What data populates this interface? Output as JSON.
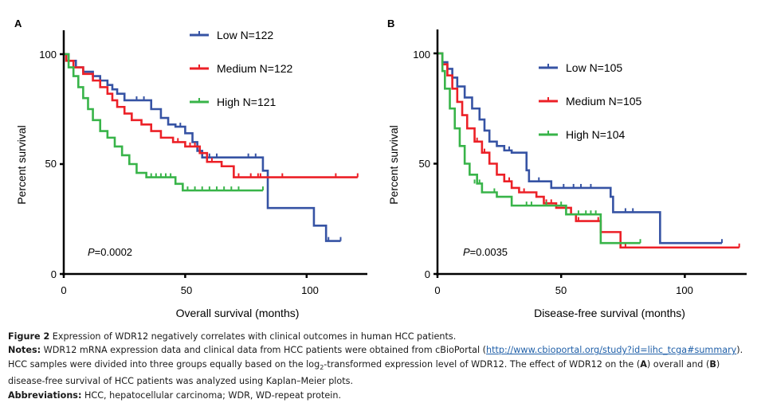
{
  "chart_data": [
    {
      "type": "line",
      "subtype": "kaplan-meier",
      "panel": "A",
      "title": "",
      "xlabel": "Overall survival (months)",
      "ylabel": "Percent survival",
      "xlim": [
        0,
        125
      ],
      "ylim": [
        0,
        100
      ],
      "xticks": [
        0,
        50,
        100
      ],
      "yticks": [
        0,
        50,
        100
      ],
      "grid": false,
      "legend_position": "top-right",
      "annotation": {
        "italic": "P",
        "text": "=0.0002"
      },
      "series": [
        {
          "name": "Low N=122",
          "color": "#3653a4",
          "steps": [
            [
              0,
              100
            ],
            [
              2,
              97
            ],
            [
              5,
              94
            ],
            [
              8,
              92
            ],
            [
              12,
              90
            ],
            [
              15,
              88
            ],
            [
              18,
              86
            ],
            [
              20,
              84
            ],
            [
              22,
              82
            ],
            [
              25,
              79
            ],
            [
              36,
              75
            ],
            [
              40,
              71
            ],
            [
              43,
              68
            ],
            [
              46,
              67
            ],
            [
              50,
              64
            ],
            [
              53,
              60
            ],
            [
              55,
              56
            ],
            [
              57,
              53
            ],
            [
              82,
              47
            ],
            [
              84,
              30
            ],
            [
              103,
              22
            ],
            [
              108,
              15
            ],
            [
              114,
              15
            ]
          ],
          "censored": [
            [
              30,
              79
            ],
            [
              33,
              79
            ],
            [
              48,
              67
            ],
            [
              60,
              53
            ],
            [
              63,
              53
            ],
            [
              76,
              53
            ],
            [
              79,
              53
            ],
            [
              109,
              15
            ],
            [
              114,
              15
            ]
          ]
        },
        {
          "name": "Medium N=122",
          "color": "#ec2027",
          "steps": [
            [
              0,
              100
            ],
            [
              1,
              97
            ],
            [
              4,
              94
            ],
            [
              8,
              91
            ],
            [
              12,
              88
            ],
            [
              15,
              85
            ],
            [
              18,
              82
            ],
            [
              20,
              79
            ],
            [
              22,
              76
            ],
            [
              25,
              73
            ],
            [
              28,
              70
            ],
            [
              32,
              68
            ],
            [
              36,
              65
            ],
            [
              40,
              62
            ],
            [
              45,
              60
            ],
            [
              50,
              58
            ],
            [
              56,
              55
            ],
            [
              59,
              51
            ],
            [
              65,
              49
            ],
            [
              70,
              44
            ],
            [
              121,
              44
            ]
          ],
          "censored": [
            [
              47,
              60
            ],
            [
              52,
              58
            ],
            [
              54,
              58
            ],
            [
              61,
              51
            ],
            [
              72,
              44
            ],
            [
              77,
              44
            ],
            [
              80,
              44
            ],
            [
              81,
              44
            ],
            [
              90,
              44
            ],
            [
              112,
              44
            ],
            [
              121,
              44
            ]
          ]
        },
        {
          "name": "High N=121",
          "color": "#38b449",
          "steps": [
            [
              0,
              100
            ],
            [
              2,
              94
            ],
            [
              4,
              90
            ],
            [
              6,
              85
            ],
            [
              8,
              80
            ],
            [
              10,
              75
            ],
            [
              12,
              70
            ],
            [
              15,
              65
            ],
            [
              18,
              62
            ],
            [
              21,
              58
            ],
            [
              24,
              54
            ],
            [
              27,
              50
            ],
            [
              30,
              46
            ],
            [
              34,
              44
            ],
            [
              46,
              41
            ],
            [
              49,
              38
            ],
            [
              82,
              38
            ]
          ],
          "censored": [
            [
              36,
              44
            ],
            [
              38,
              44
            ],
            [
              40,
              44
            ],
            [
              42,
              44
            ],
            [
              44,
              44
            ],
            [
              51,
              38
            ],
            [
              54,
              38
            ],
            [
              57,
              38
            ],
            [
              60,
              38
            ],
            [
              63,
              38
            ],
            [
              66,
              38
            ],
            [
              69,
              38
            ],
            [
              72,
              38
            ],
            [
              82,
              38
            ]
          ]
        }
      ]
    },
    {
      "type": "line",
      "subtype": "kaplan-meier",
      "panel": "B",
      "title": "",
      "xlabel": "Disease-free survival (months)",
      "ylabel": "Percent survival",
      "xlim": [
        0,
        125
      ],
      "ylim": [
        0,
        100
      ],
      "xticks": [
        0,
        50,
        100
      ],
      "yticks": [
        0,
        50,
        100
      ],
      "grid": false,
      "legend_position": "top-right",
      "annotation": {
        "italic": "P",
        "text": "=0.0035"
      },
      "series": [
        {
          "name": "Low N=105",
          "color": "#3653a4",
          "steps": [
            [
              0,
              100
            ],
            [
              2,
              96
            ],
            [
              4,
              93
            ],
            [
              6,
              89
            ],
            [
              8,
              85
            ],
            [
              11,
              80
            ],
            [
              14,
              75
            ],
            [
              17,
              70
            ],
            [
              19,
              65
            ],
            [
              21,
              60
            ],
            [
              24,
              58
            ],
            [
              27,
              56
            ],
            [
              30,
              55
            ],
            [
              36,
              47
            ],
            [
              37,
              42
            ],
            [
              46,
              39
            ],
            [
              70,
              35
            ],
            [
              71,
              28
            ],
            [
              90,
              14
            ],
            [
              115,
              14
            ]
          ],
          "censored": [
            [
              29,
              56
            ],
            [
              41,
              42
            ],
            [
              51,
              39
            ],
            [
              55,
              39
            ],
            [
              58,
              39
            ],
            [
              62,
              39
            ],
            [
              76,
              28
            ],
            [
              79,
              28
            ],
            [
              115,
              14
            ]
          ]
        },
        {
          "name": "Medium N=105",
          "color": "#ec2027",
          "steps": [
            [
              0,
              100
            ],
            [
              2,
              95
            ],
            [
              4,
              90
            ],
            [
              6,
              84
            ],
            [
              8,
              78
            ],
            [
              10,
              72
            ],
            [
              12,
              66
            ],
            [
              15,
              60
            ],
            [
              18,
              55
            ],
            [
              21,
              50
            ],
            [
              24,
              45
            ],
            [
              27,
              42
            ],
            [
              30,
              39
            ],
            [
              33,
              37
            ],
            [
              40,
              35
            ],
            [
              43,
              32
            ],
            [
              48,
              30
            ],
            [
              54,
              27
            ],
            [
              56,
              24
            ],
            [
              66,
              19
            ],
            [
              74,
              12
            ],
            [
              122,
              12
            ]
          ],
          "censored": [
            [
              16,
              60
            ],
            [
              19,
              55
            ],
            [
              29,
              42
            ],
            [
              35,
              37
            ],
            [
              44,
              32
            ],
            [
              46,
              32
            ],
            [
              57,
              24
            ],
            [
              65,
              24
            ],
            [
              76,
              12
            ],
            [
              122,
              12
            ]
          ]
        },
        {
          "name": "High N=104",
          "color": "#38b449",
          "steps": [
            [
              0,
              100
            ],
            [
              2,
              92
            ],
            [
              3,
              84
            ],
            [
              5,
              75
            ],
            [
              7,
              66
            ],
            [
              9,
              58
            ],
            [
              11,
              50
            ],
            [
              13,
              45
            ],
            [
              16,
              41
            ],
            [
              18,
              37
            ],
            [
              24,
              35
            ],
            [
              30,
              31
            ],
            [
              52,
              27
            ],
            [
              66,
              14
            ],
            [
              82,
              14
            ]
          ],
          "censored": [
            [
              15,
              41
            ],
            [
              17,
              41
            ],
            [
              23,
              37
            ],
            [
              36,
              31
            ],
            [
              38,
              31
            ],
            [
              44,
              31
            ],
            [
              50,
              31
            ],
            [
              57,
              27
            ],
            [
              60,
              27
            ],
            [
              62,
              27
            ],
            [
              64,
              27
            ],
            [
              82,
              14
            ]
          ]
        }
      ]
    }
  ],
  "panels": {
    "a": {
      "letter": "A",
      "ytick_labels": [
        "0",
        "50",
        "100"
      ],
      "xtick_labels": [
        "0",
        "50",
        "100"
      ],
      "ylabel": "Percent survival",
      "xlabel": "Overall survival (months)",
      "pvalue_italic": "P",
      "pvalue_text": "=0.0002",
      "legend": [
        "Low N=122",
        "Medium N=122",
        "High N=121"
      ]
    },
    "b": {
      "letter": "B",
      "ytick_labels": [
        "0",
        "50",
        "100"
      ],
      "xtick_labels": [
        "0",
        "50",
        "100"
      ],
      "ylabel": "Percent survival",
      "xlabel": "Disease-free survival (months)",
      "pvalue_italic": "P",
      "pvalue_text": "=0.0035",
      "legend": [
        "Low N=105",
        "Medium N=105",
        "High N=104"
      ]
    }
  },
  "caption": {
    "figure_label": "Figure 2",
    "figure_text": " Expression of WDR12 negatively correlates with clinical outcomes in human HCC patients.",
    "notes_label": "Notes:",
    "notes_text_1": " WDR12 mRNA expression data and clinical data from HCC patients were obtained from cBioPortal (",
    "notes_link": "http://www.cbioportal.org/study?id=lihc_tcga#summary",
    "notes_text_2": "). HCC samples were divided into three groups equally based on the log",
    "notes_sub": "2",
    "notes_text_3": "-transformed expression level of WDR12. The effect of WDR12 on the (",
    "notes_a": "A",
    "notes_text_4": ") overall and (",
    "notes_b": "B",
    "notes_text_5": ") disease-free survival of HCC patients was analyzed using Kaplan–Meier plots.",
    "abbrev_label": "Abbreviations:",
    "abbrev_text": " HCC, hepatocellular carcinoma; WDR, WD-repeat protein."
  }
}
